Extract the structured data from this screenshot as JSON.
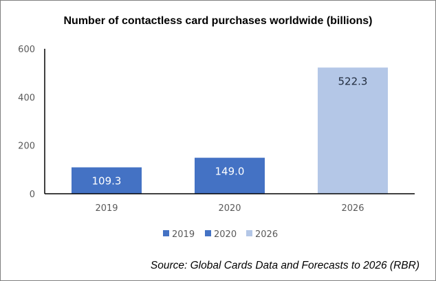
{
  "chart_data": {
    "type": "bar",
    "title": "Number of contactless card purchases worldwide (billions)",
    "categories": [
      "2019",
      "2020",
      "2026"
    ],
    "values": [
      109.3,
      149.0,
      522.3
    ],
    "data_labels": [
      "109.3",
      "149.0",
      "522.3"
    ],
    "colors": [
      "#4472c4",
      "#4472c4",
      "#b4c7e7"
    ],
    "label_colors": [
      "#ffffff",
      "#ffffff",
      "#1f2a3c"
    ],
    "ylim": [
      0,
      600
    ],
    "yticks": [
      "0",
      "200",
      "400",
      "600"
    ],
    "grid": false,
    "legend": {
      "position": "bottom",
      "entries": [
        "2019",
        "2020",
        "2026"
      ]
    },
    "xlabel": "",
    "ylabel": ""
  },
  "source": "Source: Global Cards Data and Forecasts to 2026 (RBR)"
}
